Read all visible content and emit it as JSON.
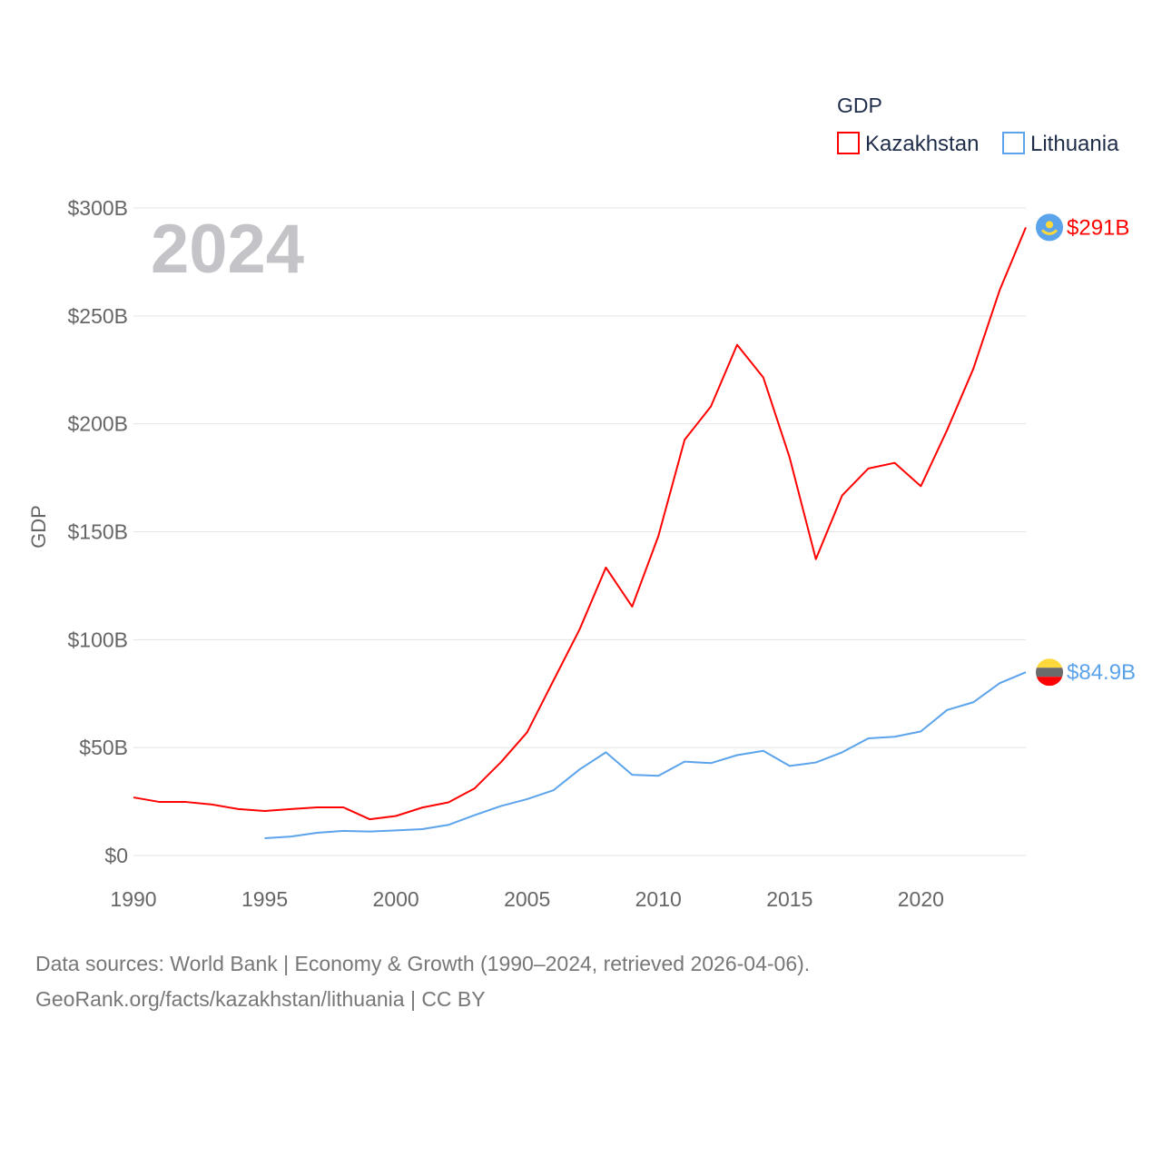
{
  "chart_data": {
    "type": "line",
    "title": "GDP",
    "ylabel": "GDP",
    "xlabel": "",
    "year_label": "2024",
    "xlim": [
      1990,
      2024
    ],
    "ylim": [
      0,
      300
    ],
    "x_ticks": [
      1990,
      1995,
      2000,
      2005,
      2010,
      2015,
      2020
    ],
    "y_ticks": [
      0,
      50,
      100,
      150,
      200,
      250,
      300
    ],
    "y_tick_labels": [
      "$0",
      "$50B",
      "$100B",
      "$150B",
      "$200B",
      "$250B",
      "$300B"
    ],
    "grid": true,
    "legend_position": "top-right",
    "series": [
      {
        "name": "Kazakhstan",
        "color": "#ff0000",
        "end_label": "$291B",
        "flag": "kazakhstan-flag",
        "x": [
          1990,
          1991,
          1992,
          1993,
          1994,
          1995,
          1996,
          1997,
          1998,
          1999,
          2000,
          2001,
          2002,
          2003,
          2004,
          2005,
          2006,
          2007,
          2008,
          2009,
          2010,
          2011,
          2012,
          2013,
          2014,
          2015,
          2016,
          2017,
          2018,
          2019,
          2020,
          2021,
          2022,
          2023,
          2024
        ],
        "values": [
          26.9,
          24.8,
          24.8,
          23.6,
          21.5,
          20.6,
          21.5,
          22.3,
          22.3,
          16.8,
          18.3,
          22.2,
          24.6,
          31.1,
          43.2,
          57.1,
          81.0,
          104.8,
          133.4,
          115.3,
          148.0,
          192.6,
          208.0,
          236.6,
          221.4,
          184.4,
          137.3,
          166.8,
          179.3,
          181.9,
          171.1,
          197.1,
          225.5,
          261.8,
          291.0
        ]
      },
      {
        "name": "Lithuania",
        "color": "#5ba3ea",
        "end_label": "$84.9B",
        "flag": "lithuania-flag",
        "x": [
          1995,
          1996,
          1997,
          1998,
          1999,
          2000,
          2001,
          2002,
          2003,
          2004,
          2005,
          2006,
          2007,
          2008,
          2009,
          2010,
          2011,
          2012,
          2013,
          2014,
          2015,
          2016,
          2017,
          2018,
          2019,
          2020,
          2021,
          2022,
          2023,
          2024
        ],
        "values": [
          8.0,
          8.8,
          10.5,
          11.4,
          11.1,
          11.6,
          12.2,
          14.2,
          18.7,
          22.9,
          26.1,
          30.2,
          39.9,
          47.8,
          37.4,
          36.9,
          43.5,
          42.8,
          46.5,
          48.5,
          41.5,
          43.1,
          47.8,
          54.3,
          55.0,
          57.5,
          67.4,
          71.0,
          79.8,
          84.9
        ]
      }
    ]
  },
  "footer": {
    "line1": "Data sources: World Bank | Economy & Growth (1990–2024, retrieved 2026-04-06).",
    "line2": "GeoRank.org/facts/kazakhstan/lithuania | CC BY"
  }
}
